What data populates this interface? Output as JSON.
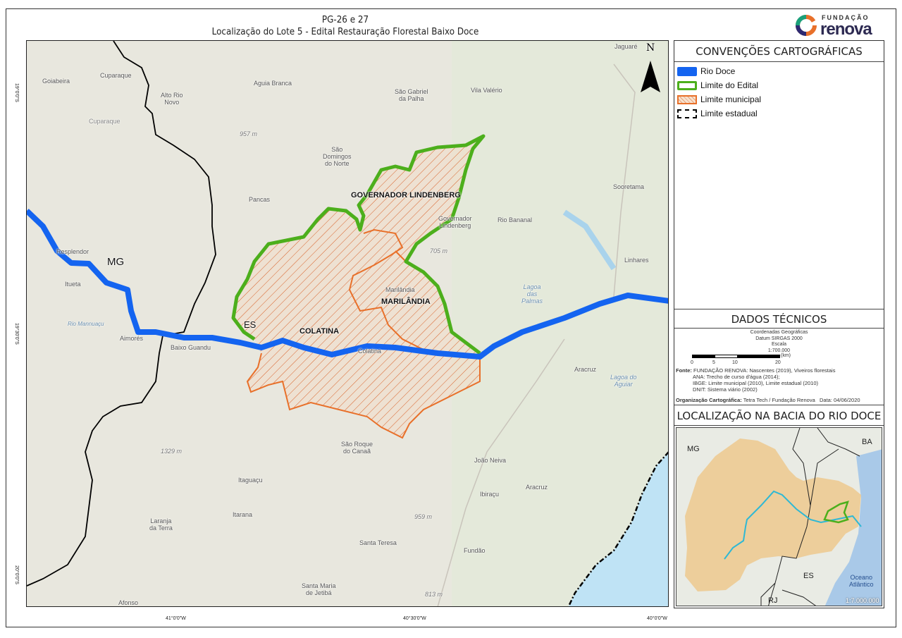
{
  "title": {
    "line1": "PG-26 e 27",
    "line2": "Localização do Lote 5 - Edital Restauração Florestal Baixo Doce"
  },
  "logo": {
    "top": "FUNDAÇÃO",
    "bottom": "renova"
  },
  "map": {
    "north_label": "N",
    "lat_ticks": [
      "19°0'0\"S",
      "19°30'0\"S",
      "20°0'0\"S"
    ],
    "lon_ticks": [
      "41°0'0\"W",
      "40°30'0\"W",
      "40°0'0\"W"
    ],
    "municipalities": [
      "GOVERNADOR LINDENBERG",
      "MARILÂNDIA",
      "COLATINA"
    ],
    "states": [
      "MG",
      "ES"
    ],
    "places": [
      "Goiabeira",
      "Cuparaque",
      "Alto Rio\nNovo",
      "Aguia Branca",
      "São Gabriel\nda Palha",
      "Vila Valério",
      "Jaguaré",
      "São\nDomingos\ndo Norte",
      "Pancas",
      "Sooretama",
      "Rio Bananal",
      "Governador\nLindenberg",
      "Resplendor",
      "Itueta",
      "Aimorés",
      "Baixo Guandu",
      "Marilândia",
      "Colatina",
      "Linhares",
      "Aracruz",
      "João Neiva",
      "Aracruz",
      "Ibiraçu",
      "São Roque\ndo Canaã",
      "Itaguaçu",
      "Itarana",
      "Laranja\nda Terra",
      "Santa Teresa",
      "Fundão",
      "Santa Maria\nde Jetibá",
      "Afonso",
      "Cuparaque"
    ],
    "elevations": [
      "957 m",
      "705 m",
      "1329 m",
      "959 m",
      "813 m"
    ],
    "water": [
      "Lagoa\ndas\nPalmas",
      "Lagoa do\nAguiar",
      "Rio Mannuaçu"
    ]
  },
  "legend": {
    "title": "CONVENÇÕES CARTOGRÁFICAS",
    "items": [
      {
        "label": "Rio Doce",
        "color": "#1464f0"
      },
      {
        "label": "Limite do Edital",
        "color": "#4caf1c"
      },
      {
        "label": "Limite municipal",
        "color": "#e8702a"
      },
      {
        "label": "Limite estadual",
        "color": "#000000"
      }
    ]
  },
  "tech": {
    "title": "DADOS TÉCNICOS",
    "coords": "Coordenadas Geográficas",
    "datum": "Datum SIRGAS 2000",
    "scale_label": "Escala",
    "scale": "1:700.000",
    "scalebar_ticks": [
      "0",
      "5",
      "10",
      "20"
    ],
    "scalebar_unit": "(km)",
    "sources_label": "Fonte:",
    "sources": [
      "FUNDAÇÃO RENOVA: Nascentes (2019), Viveiros florestais",
      "ANA: Trecho de curso d'água (2014);",
      "IBGE: Limite municipal (2010), Limite estadual (2010)",
      "DNIT: Sistema viário (2002)"
    ],
    "org_label": "Organização Cartográfica:",
    "org": "Tetra Tech / Fundação Renova",
    "date": "Data: 04/06/2020"
  },
  "inset": {
    "title": "LOCALIZAÇÃO NA BACIA DO RIO DOCE",
    "labels": [
      "MG",
      "BA",
      "ES",
      "RJ",
      "Oceano\nAtlântico"
    ],
    "scale": "1:7.000.000"
  }
}
